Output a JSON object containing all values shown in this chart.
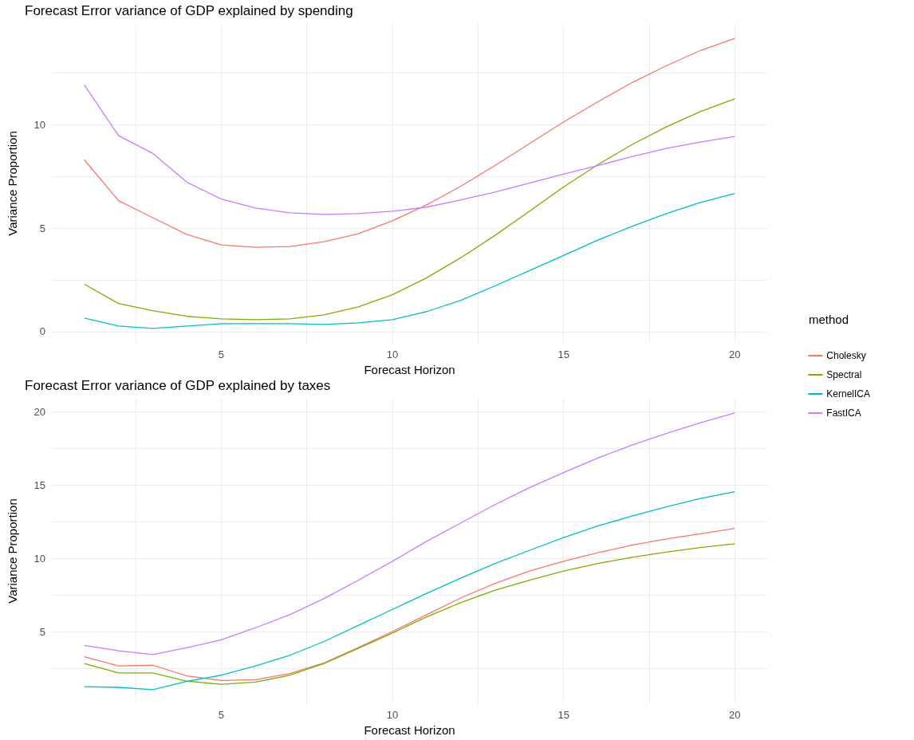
{
  "chart_data": [
    {
      "type": "line",
      "title": "Forecast Error variance of GDP explained by spending",
      "xlabel": "Forecast Horizon",
      "ylabel": "Variance Proportion",
      "legend_title": "method",
      "legend": "right",
      "grid": true,
      "x": [
        1,
        2,
        3,
        4,
        5,
        6,
        7,
        8,
        9,
        10,
        11,
        12,
        13,
        14,
        15,
        16,
        17,
        18,
        19,
        20
      ],
      "xlim": [
        0.05,
        20.95
      ],
      "xticks": [
        {
          "value": 2.5,
          "label": null
        },
        5,
        {
          "value": 7.5,
          "label": null
        },
        10,
        {
          "value": 12.5,
          "label": null
        },
        15,
        {
          "value": 17.5,
          "label": null
        },
        20
      ],
      "ylim": [
        -0.54,
        14.85
      ],
      "yticks": [
        0,
        {
          "value": 2.5,
          "label": null
        },
        5,
        {
          "value": 7.5,
          "label": null
        },
        10,
        {
          "value": 12.5,
          "label": null
        }
      ],
      "series": [
        {
          "name": "Cholesky",
          "color": "#f8766d",
          "values": [
            8.29,
            6.32,
            5.5,
            4.69,
            4.19,
            4.07,
            4.11,
            4.34,
            4.73,
            5.35,
            6.12,
            7.02,
            8.02,
            9.07,
            10.12,
            11.09,
            12.02,
            12.83,
            13.57,
            14.15
          ]
        },
        {
          "name": "Spectral",
          "color": "#7cae00",
          "values": [
            2.29,
            1.36,
            1.01,
            0.74,
            0.62,
            0.58,
            0.62,
            0.81,
            1.2,
            1.78,
            2.6,
            3.57,
            4.65,
            5.81,
            6.98,
            8.06,
            9.03,
            9.88,
            10.62,
            11.24
          ]
        },
        {
          "name": "KernelICA",
          "color": "#00bfc4",
          "values": [
            0.66,
            0.27,
            0.16,
            0.27,
            0.39,
            0.39,
            0.39,
            0.35,
            0.43,
            0.58,
            0.97,
            1.51,
            2.21,
            2.95,
            3.68,
            4.42,
            5.08,
            5.7,
            6.24,
            6.67
          ]
        },
        {
          "name": "FastICA",
          "color": "#c77cff",
          "values": [
            11.9,
            9.46,
            8.6,
            7.21,
            6.4,
            5.97,
            5.74,
            5.66,
            5.7,
            5.81,
            6.01,
            6.36,
            6.74,
            7.17,
            7.6,
            8.02,
            8.45,
            8.84,
            9.15,
            9.42
          ]
        }
      ]
    },
    {
      "type": "line",
      "title": "Forecast Error variance of GDP explained by taxes",
      "xlabel": "Forecast Horizon",
      "ylabel": "Variance Proportion",
      "grid": true,
      "x": [
        1,
        2,
        3,
        4,
        5,
        6,
        7,
        8,
        9,
        10,
        11,
        12,
        13,
        14,
        15,
        16,
        17,
        18,
        19,
        20
      ],
      "xlim": [
        0.05,
        20.95
      ],
      "xticks": [
        {
          "value": 2.5,
          "label": null
        },
        5,
        {
          "value": 7.5,
          "label": null
        },
        10,
        {
          "value": 12.5,
          "label": null
        },
        15,
        {
          "value": 17.5,
          "label": null
        },
        20
      ],
      "ylim": [
        0.1,
        20.9
      ],
      "yticks": [
        {
          "value": 2.5,
          "label": null
        },
        5,
        {
          "value": 7.5,
          "label": null
        },
        10,
        {
          "value": 12.5,
          "label": null
        },
        15,
        {
          "value": 17.5,
          "label": null
        },
        20
      ],
      "series": [
        {
          "color": "#f8766d",
          "values": [
            3.28,
            2.65,
            2.7,
            1.97,
            1.66,
            1.71,
            2.13,
            2.86,
            3.9,
            5.0,
            6.15,
            7.3,
            8.29,
            9.13,
            9.8,
            10.38,
            10.9,
            11.32,
            11.68,
            12.05
          ]
        },
        {
          "color": "#7cae00",
          "values": [
            2.81,
            2.18,
            2.18,
            1.61,
            1.4,
            1.55,
            2.02,
            2.81,
            3.85,
            4.9,
            6.0,
            6.98,
            7.82,
            8.5,
            9.13,
            9.65,
            10.07,
            10.43,
            10.74,
            11.0
          ]
        },
        {
          "color": "#00bfc4",
          "values": [
            1.24,
            1.19,
            1.03,
            1.61,
            2.02,
            2.65,
            3.38,
            4.32,
            5.42,
            6.51,
            7.61,
            8.66,
            9.65,
            10.54,
            11.42,
            12.21,
            12.89,
            13.51,
            14.09,
            14.55
          ]
        },
        {
          "color": "#c77cff",
          "values": [
            4.06,
            3.69,
            3.43,
            3.9,
            4.43,
            5.26,
            6.15,
            7.25,
            8.5,
            9.8,
            11.16,
            12.42,
            13.67,
            14.82,
            15.86,
            16.85,
            17.74,
            18.52,
            19.26,
            19.93
          ]
        }
      ]
    }
  ]
}
